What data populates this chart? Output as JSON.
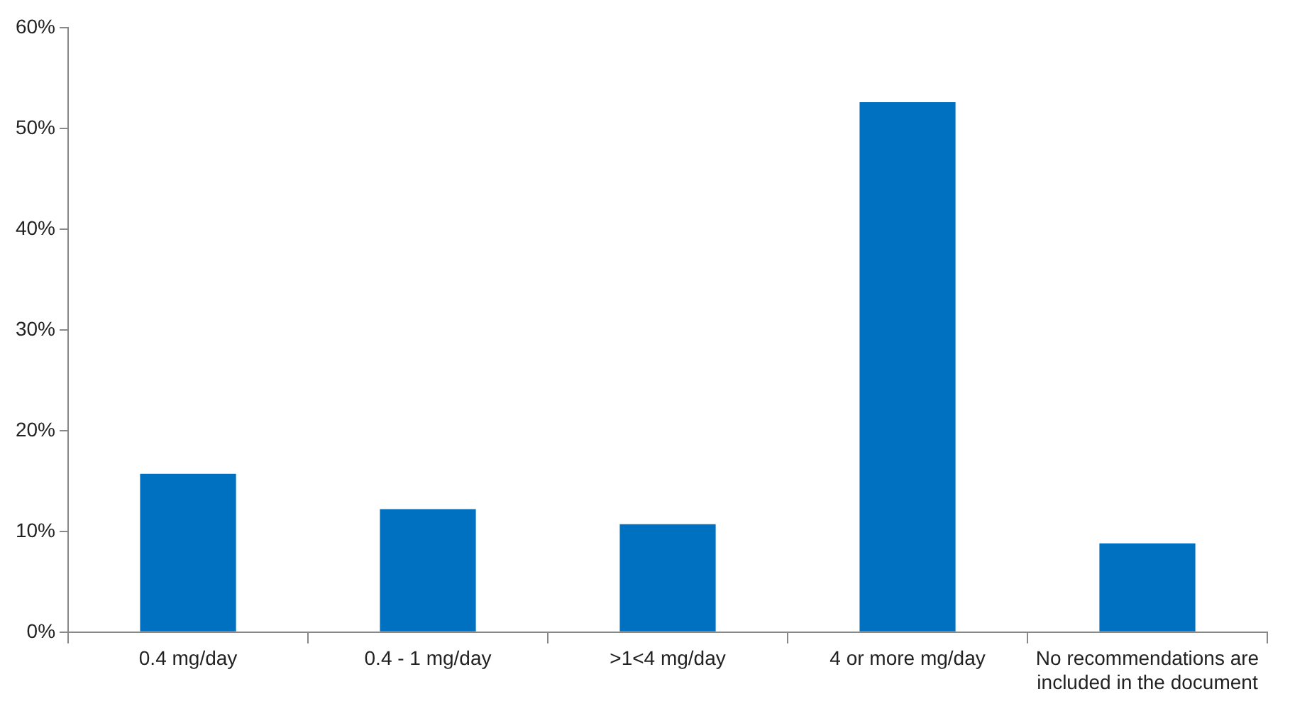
{
  "chart_data": {
    "type": "bar",
    "categories": [
      "0.4 mg/day",
      "0.4 - 1 mg/day",
      ">1<4 mg/day",
      "4 or more mg/day",
      "No recommendations are included in the document"
    ],
    "values": [
      15.7,
      12.2,
      10.7,
      52.6,
      8.8
    ],
    "color": "#0070c0",
    "ylim": [
      0,
      60
    ],
    "yticks": [
      {
        "value": 0,
        "label": "0%"
      },
      {
        "value": 10,
        "label": "10%"
      },
      {
        "value": 20,
        "label": "20%"
      },
      {
        "value": 30,
        "label": "30%"
      },
      {
        "value": 40,
        "label": "40%"
      },
      {
        "value": 50,
        "label": "50%"
      },
      {
        "value": 60,
        "label": "60%"
      }
    ],
    "grid": false,
    "legend": false
  }
}
